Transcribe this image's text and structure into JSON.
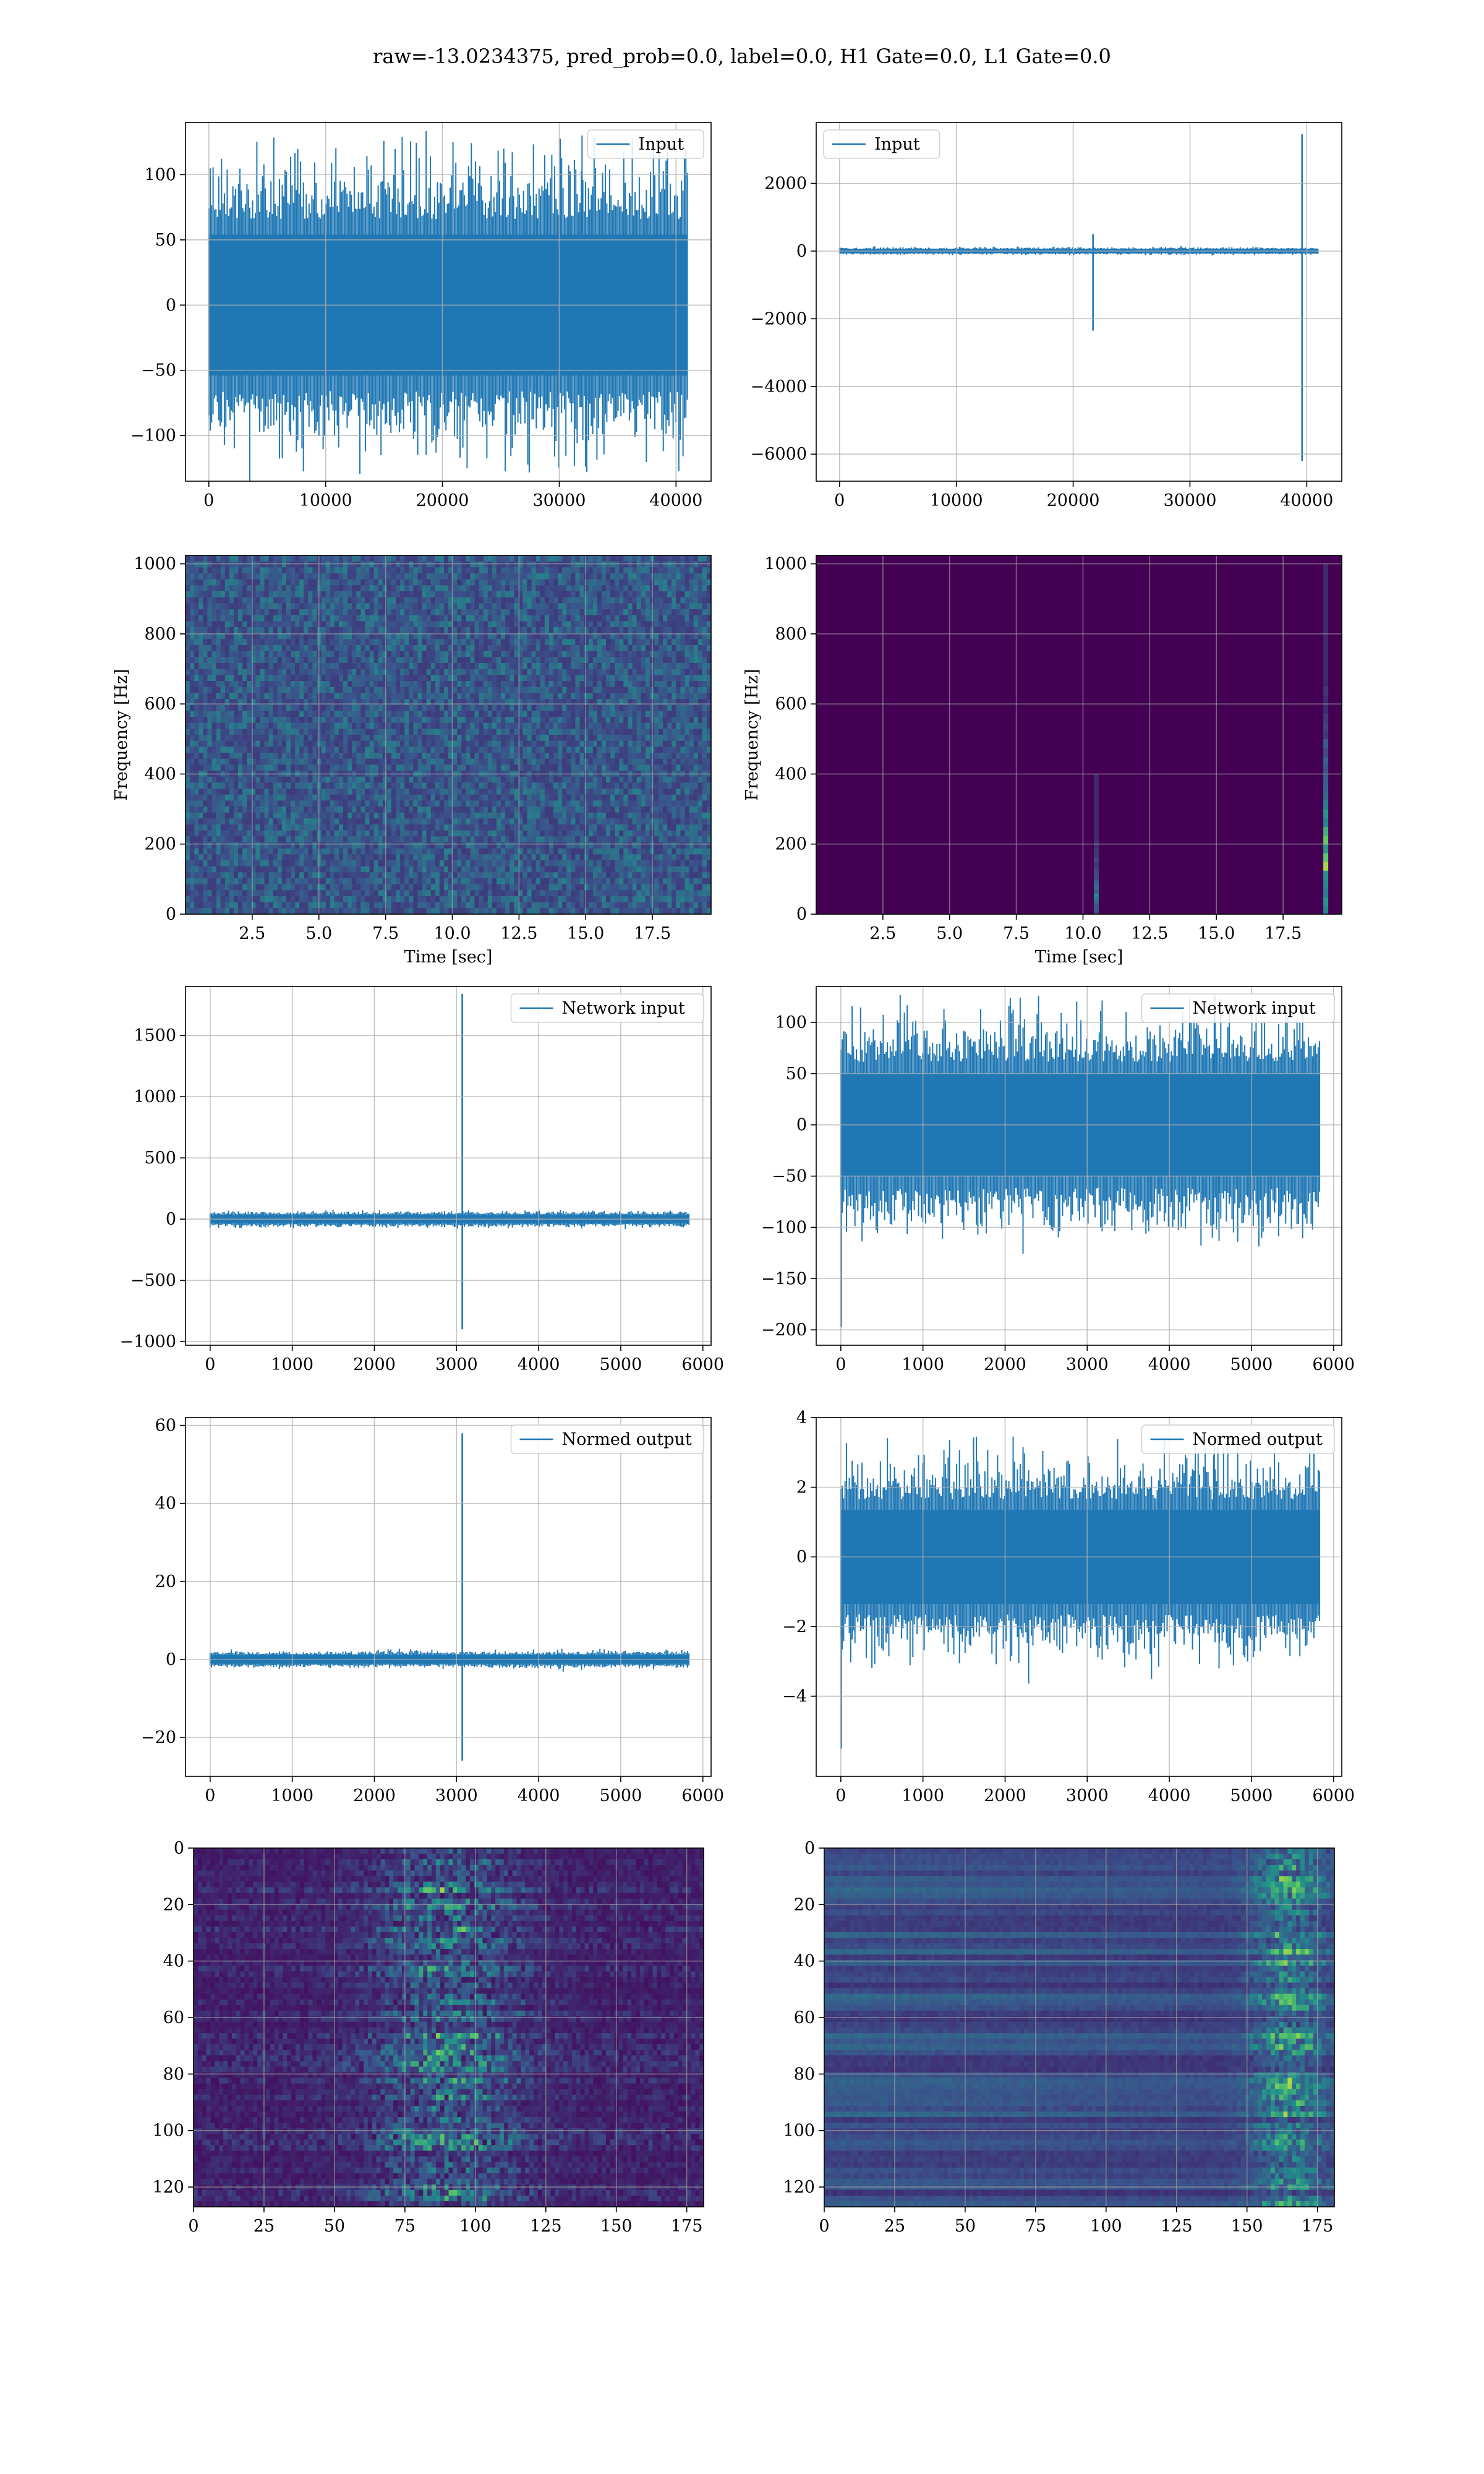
{
  "figure": {
    "suptitle": "raw=-13.0234375, pred_prob=0.0, label=0.0, H1 Gate=0.0, L1 Gate=0.0"
  },
  "colors": {
    "line": "#1f77b4",
    "grid": "#b0b0b0",
    "viridis_low": "#440154",
    "viridis_mid": "#21918c",
    "viridis_high": "#fde725"
  },
  "chart_data": [
    {
      "type": "line",
      "name": "input-h1",
      "legend": "Input",
      "legend_loc": "upper right",
      "xlim": [
        -2000,
        43000
      ],
      "ylim": [
        -135,
        140
      ],
      "xticks": [
        0,
        10000,
        20000,
        30000,
        40000
      ],
      "yticks": [
        -100,
        -50,
        0,
        50,
        100
      ],
      "grid": true,
      "signal": {
        "kind": "noise",
        "x_range": [
          0,
          40960
        ],
        "std": 30,
        "max": 130,
        "min": -128
      },
      "xlabel": "",
      "ylabel": ""
    },
    {
      "type": "line",
      "name": "input-l1",
      "legend": "Input",
      "legend_loc": "upper left",
      "xlim": [
        -2000,
        43000
      ],
      "ylim": [
        -6800,
        3800
      ],
      "xticks": [
        0,
        10000,
        20000,
        30000,
        40000
      ],
      "yticks": [
        -6000,
        -4000,
        -2000,
        0,
        2000
      ],
      "grid": true,
      "signal": {
        "kind": "noise",
        "x_range": [
          0,
          40960
        ],
        "std": 30,
        "spikes": [
          {
            "x": 21700,
            "max": 500,
            "min": -2350
          },
          {
            "x": 39600,
            "max": 3450,
            "min": -6200
          }
        ]
      },
      "xlabel": "",
      "ylabel": ""
    },
    {
      "type": "heatmap",
      "name": "spectrogram-h1",
      "xlim": [
        0,
        19.7
      ],
      "ylim": [
        0,
        1024
      ],
      "xticks": [
        2.5,
        5.0,
        7.5,
        10.0,
        12.5,
        15.0,
        17.5
      ],
      "yticks": [
        0,
        200,
        400,
        600,
        800,
        1000
      ],
      "grid": true,
      "xlabel": "Time [sec]",
      "ylabel": "Frequency [Hz]",
      "pattern": {
        "kind": "noise",
        "base": 0.18,
        "amp": 0.25
      }
    },
    {
      "type": "heatmap",
      "name": "spectrogram-l1",
      "xlim": [
        0,
        19.7
      ],
      "ylim": [
        0,
        1024
      ],
      "xticks": [
        2.5,
        5.0,
        7.5,
        10.0,
        12.5,
        15.0,
        17.5
      ],
      "yticks": [
        0,
        200,
        400,
        600,
        800,
        1000
      ],
      "grid": true,
      "xlabel": "Time [sec]",
      "ylabel": "Frequency [Hz]",
      "pattern": {
        "kind": "glitches",
        "base": 0.0,
        "glitches": [
          {
            "t": 10.5,
            "f_max": 400,
            "peak": 0.55,
            "peak_f": 50
          },
          {
            "t": 19.1,
            "f_max": 1000,
            "peak": 0.95,
            "peak_f": 150
          }
        ]
      }
    },
    {
      "type": "line",
      "name": "network-input-h1",
      "legend": "Network input",
      "legend_loc": "upper right",
      "xlim": [
        -300,
        6100
      ],
      "ylim": [
        -1030,
        1900
      ],
      "xticks": [
        0,
        1000,
        2000,
        3000,
        4000,
        5000,
        6000
      ],
      "yticks": [
        -1000,
        -500,
        0,
        500,
        1000,
        1500
      ],
      "grid": true,
      "signal": {
        "kind": "noise",
        "x_range": [
          0,
          5830
        ],
        "std": 18,
        "spikes": [
          {
            "x": 3070,
            "max": 1840,
            "min": -900
          }
        ]
      },
      "xlabel": "",
      "ylabel": ""
    },
    {
      "type": "line",
      "name": "network-input-l1",
      "legend": "Network input",
      "legend_loc": "upper right",
      "xlim": [
        -300,
        6100
      ],
      "ylim": [
        -215,
        135
      ],
      "xticks": [
        0,
        1000,
        2000,
        3000,
        4000,
        5000,
        6000
      ],
      "yticks": [
        -200,
        -150,
        -100,
        -50,
        0,
        50,
        100
      ],
      "grid": true,
      "signal": {
        "kind": "noise",
        "x_range": [
          0,
          5830
        ],
        "std": 28,
        "max": 127,
        "min": -113,
        "spikes": [
          {
            "x": 5,
            "max": 30,
            "min": -197
          }
        ]
      },
      "xlabel": "",
      "ylabel": ""
    },
    {
      "type": "line",
      "name": "normed-output-h1",
      "legend": "Normed output",
      "legend_loc": "upper right",
      "xlim": [
        -300,
        6100
      ],
      "ylim": [
        -30,
        62
      ],
      "xticks": [
        0,
        1000,
        2000,
        3000,
        4000,
        5000,
        6000
      ],
      "yticks": [
        -20,
        0,
        20,
        40,
        60
      ],
      "grid": true,
      "signal": {
        "kind": "noise",
        "x_range": [
          0,
          5830
        ],
        "std": 0.6,
        "spikes": [
          {
            "x": 3070,
            "max": 58,
            "min": -26
          }
        ]
      },
      "xlabel": "",
      "ylabel": ""
    },
    {
      "type": "line",
      "name": "normed-output-l1",
      "legend": "Normed output",
      "legend_loc": "upper right",
      "xlim": [
        -300,
        6100
      ],
      "ylim": [
        -6.3,
        4.0
      ],
      "xticks": [
        0,
        1000,
        2000,
        3000,
        4000,
        5000,
        6000
      ],
      "yticks": [
        -4,
        -2,
        0,
        2,
        4
      ],
      "grid": true,
      "signal": {
        "kind": "noise",
        "x_range": [
          0,
          5830
        ],
        "std": 0.75,
        "max": 3.5,
        "min": -3.2,
        "spikes": [
          {
            "x": 5,
            "max": 1.0,
            "min": -5.5
          }
        ]
      },
      "xlabel": "",
      "ylabel": ""
    },
    {
      "type": "heatmap",
      "name": "feature-map-h1",
      "xlim": [
        0,
        181
      ],
      "ylim": [
        0,
        127
      ],
      "y_inverted": true,
      "xticks": [
        0,
        25,
        50,
        75,
        100,
        125,
        150,
        175
      ],
      "yticks": [
        0,
        20,
        40,
        60,
        80,
        100,
        120
      ],
      "grid": true,
      "xlabel": "",
      "ylabel": "",
      "pattern": {
        "kind": "band",
        "center": 90,
        "width": 25,
        "base": 0.05,
        "amp": 0.45
      }
    },
    {
      "type": "heatmap",
      "name": "feature-map-l1",
      "xlim": [
        0,
        181
      ],
      "ylim": [
        0,
        127
      ],
      "y_inverted": true,
      "xticks": [
        0,
        25,
        50,
        75,
        100,
        125,
        150,
        175
      ],
      "yticks": [
        0,
        20,
        40,
        60,
        80,
        100,
        120
      ],
      "grid": true,
      "xlabel": "",
      "ylabel": "",
      "pattern": {
        "kind": "rows",
        "hot_x": 165,
        "base": 0.12,
        "amp": 0.5
      }
    }
  ]
}
